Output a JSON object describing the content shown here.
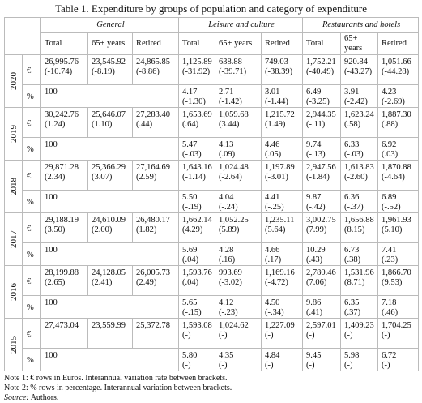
{
  "title": "Table 1. Expenditure by groups of population and category of expenditure",
  "table": {
    "groups": [
      "General",
      "Leisure and culture",
      "Restaurants and hotels"
    ],
    "columns": [
      "Total",
      "65+ years",
      "Retired",
      "Total",
      "65+ years",
      "Retired",
      "Total",
      "65+ years",
      "Retired"
    ],
    "years": [
      {
        "year": "2020",
        "rows": [
          {
            "unit": "€",
            "cells": [
              {
                "value": "26,995.76",
                "change": "(-10.74)"
              },
              {
                "value": "23,545.92",
                "change": "(-8.19)"
              },
              {
                "value": "24,865.85",
                "change": "(-8.86)"
              },
              {
                "value": "1,125.89",
                "change": "(-31.92)"
              },
              {
                "value": "638.88",
                "change": "(-39.71)"
              },
              {
                "value": "749.03",
                "change": "(-38.39)"
              },
              {
                "value": "1,752.21",
                "change": "(-40.49)"
              },
              {
                "value": "920.84",
                "change": "(-43.27)"
              },
              {
                "value": "1,051.66",
                "change": "(-44.28)"
              }
            ]
          },
          {
            "unit": "%",
            "general": "100",
            "cells": [
              {
                "value": "4.17",
                "change": "(-1.30)"
              },
              {
                "value": "2.71",
                "change": "(-1.42)"
              },
              {
                "value": "3.01",
                "change": "(-1.44)"
              },
              {
                "value": "6.49",
                "change": "(-3.25)"
              },
              {
                "value": "3.91",
                "change": "(-2.42)"
              },
              {
                "value": "4.23",
                "change": "(-2.69)"
              }
            ]
          }
        ]
      },
      {
        "year": "2019",
        "rows": [
          {
            "unit": "€",
            "cells": [
              {
                "value": "30,242.76",
                "change": "(1.24)"
              },
              {
                "value": "25,646.07",
                "change": "(1.10)"
              },
              {
                "value": "27,283.40",
                "change": "(.44)"
              },
              {
                "value": "1,653.69",
                "change": "(.64)"
              },
              {
                "value": "1,059.68",
                "change": "(3.44)"
              },
              {
                "value": "1,215.72",
                "change": "(1.49)"
              },
              {
                "value": "2,944.35",
                "change": "(-.11)"
              },
              {
                "value": "1,623.24",
                "change": "(.58)"
              },
              {
                "value": "1,887.30",
                "change": "(.88)"
              }
            ]
          },
          {
            "unit": "%",
            "general": "100",
            "cells": [
              {
                "value": "5.47",
                "change": "(-.03)"
              },
              {
                "value": "4.13",
                "change": "(.09)"
              },
              {
                "value": "4.46",
                "change": "(.05)"
              },
              {
                "value": "9.74",
                "change": "(-.13)"
              },
              {
                "value": "6.33",
                "change": "(-.03)"
              },
              {
                "value": "6.92",
                "change": "(.03)"
              }
            ]
          }
        ]
      },
      {
        "year": "2018",
        "rows": [
          {
            "unit": "€",
            "cells": [
              {
                "value": "29,871.28",
                "change": "(2.34)"
              },
              {
                "value": "25,366.29",
                "change": "(3.07)"
              },
              {
                "value": "27,164.69",
                "change": "(2.59)"
              },
              {
                "value": "1,643.16",
                "change": "(-1.14)"
              },
              {
                "value": "1,024.48",
                "change": "(-2.64)"
              },
              {
                "value": "1,197.89",
                "change": "(-3.01)"
              },
              {
                "value": "2,947.56",
                "change": "(-1.84)"
              },
              {
                "value": "1,613.83",
                "change": "(-2.60)"
              },
              {
                "value": "1,870.88",
                "change": "(-4.64)"
              }
            ]
          },
          {
            "unit": "%",
            "general": "100",
            "cells": [
              {
                "value": "5.50",
                "change": "(-.19)"
              },
              {
                "value": "4.04",
                "change": "(-.24)"
              },
              {
                "value": "4.41",
                "change": "(-.25)"
              },
              {
                "value": "9.87",
                "change": "(-.42)"
              },
              {
                "value": "6.36",
                "change": "(-.37)"
              },
              {
                "value": "6.89",
                "change": "(-.52)"
              }
            ]
          }
        ]
      },
      {
        "year": "2017",
        "rows": [
          {
            "unit": "€",
            "cells": [
              {
                "value": "29,188.19",
                "change": "(3.50)"
              },
              {
                "value": "24,610.09",
                "change": "(2.00)"
              },
              {
                "value": "26,480.17",
                "change": "(1.82)"
              },
              {
                "value": "1,662.14",
                "change": "(4.29)"
              },
              {
                "value": "1,052.25",
                "change": "(5.89)"
              },
              {
                "value": "1,235.11",
                "change": "(5.64)"
              },
              {
                "value": "3,002.75",
                "change": "(7.99)"
              },
              {
                "value": "1,656.88",
                "change": "(8.15)"
              },
              {
                "value": "1,961.93",
                "change": "(5.10)"
              }
            ]
          },
          {
            "unit": "%",
            "general": "100",
            "cells": [
              {
                "value": "5.69",
                "change": "(.04)"
              },
              {
                "value": "4.28",
                "change": "(.16)"
              },
              {
                "value": "4.66",
                "change": "(.17)"
              },
              {
                "value": "10.29",
                "change": "(.43)"
              },
              {
                "value": "6.73",
                "change": "(.38)"
              },
              {
                "value": "7.41",
                "change": "(.23)"
              }
            ]
          }
        ]
      },
      {
        "year": "2016",
        "rows": [
          {
            "unit": "€",
            "cells": [
              {
                "value": "28,199.88",
                "change": "(2.65)"
              },
              {
                "value": "24,128.05",
                "change": "(2.41)"
              },
              {
                "value": "26,005.73",
                "change": "(2.49)"
              },
              {
                "value": "1,593.76",
                "change": "(.04)"
              },
              {
                "value": "993.69",
                "change": "(-3.02)"
              },
              {
                "value": "1,169.16",
                "change": "(-4.72)"
              },
              {
                "value": "2,780.46",
                "change": "(7.06)"
              },
              {
                "value": "1,531.96",
                "change": "(8.71)"
              },
              {
                "value": "1,866.70",
                "change": "(9.53)"
              }
            ]
          },
          {
            "unit": "%",
            "general": "100",
            "cells": [
              {
                "value": "5.65",
                "change": "(-.15)"
              },
              {
                "value": "4.12",
                "change": "(-.23)"
              },
              {
                "value": "4.50",
                "change": "(-.34)"
              },
              {
                "value": "9.86",
                "change": "(.41)"
              },
              {
                "value": "6.35",
                "change": "(.37)"
              },
              {
                "value": "7.18",
                "change": "(.46)"
              }
            ]
          }
        ]
      },
      {
        "year": "2015",
        "rows": [
          {
            "unit": "€",
            "cells": [
              {
                "value": "27,473.04"
              },
              {
                "value": "23,559.99"
              },
              {
                "value": "25,372.78"
              },
              {
                "value": "1,593.08",
                "change": "(-)"
              },
              {
                "value": "1,024.62",
                "change": "(-)"
              },
              {
                "value": "1,227.09",
                "change": "(-)"
              },
              {
                "value": "2,597.01",
                "change": "(-)"
              },
              {
                "value": "1,409.23",
                "change": "(-)"
              },
              {
                "value": "1,704.25",
                "change": "(-)"
              }
            ]
          },
          {
            "unit": "%",
            "general": "100",
            "cells": [
              {
                "value": "5.80",
                "change": "(-)"
              },
              {
                "value": "4.35",
                "change": "(-)"
              },
              {
                "value": "4.84",
                "change": "(-)"
              },
              {
                "value": "9.45",
                "change": "(-)"
              },
              {
                "value": "5.98",
                "change": "(-)"
              },
              {
                "value": "6.72",
                "change": "(-)"
              }
            ]
          }
        ]
      }
    ]
  },
  "notes": [
    "Note 1: € rows in Euros. Interannual variation rate between brackets.",
    "Note 2: % rows in percentage. Interannual variation between brackets."
  ],
  "source": {
    "label": "Source:",
    "text": "Authors."
  }
}
